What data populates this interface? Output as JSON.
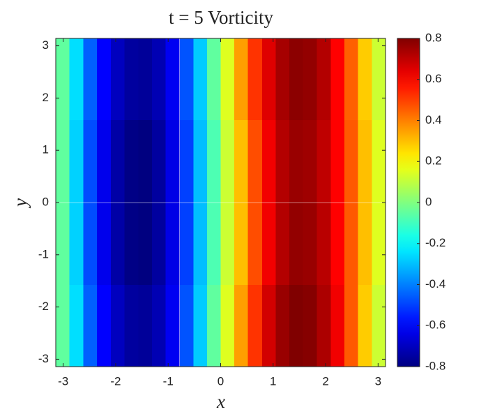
{
  "chart_data": {
    "type": "heatmap",
    "title": "t = 5 Vorticity",
    "x_label": "x",
    "y_label": "y",
    "colormap": "jet",
    "clim": [
      -0.8,
      0.8
    ],
    "cticks": [
      -0.8,
      -0.6,
      -0.4,
      -0.2,
      0,
      0.2,
      0.4,
      0.6,
      0.8
    ],
    "xlim": [
      -3.1416,
      3.1416
    ],
    "ylim": [
      -3.1416,
      3.1416
    ],
    "xticks": [
      -3,
      -2,
      -1,
      0,
      1,
      2,
      3
    ],
    "yticks": [
      -3,
      -2,
      -1,
      0,
      1,
      2,
      3
    ],
    "x": [
      -3.01,
      -2.75,
      -2.49,
      -2.23,
      -1.96,
      -1.7,
      -1.44,
      -1.18,
      -0.92,
      -0.65,
      -0.39,
      -0.13,
      0.13,
      0.39,
      0.65,
      0.92,
      1.18,
      1.44,
      1.7,
      1.96,
      2.23,
      2.49,
      2.75,
      3.01
    ],
    "y": [
      2.36,
      0.79,
      -0.79,
      -2.36
    ],
    "values": [
      [
        -0.05,
        -0.25,
        -0.45,
        -0.6,
        -0.7,
        -0.75,
        -0.76,
        -0.72,
        -0.62,
        -0.47,
        -0.28,
        -0.05,
        0.15,
        0.35,
        0.52,
        0.65,
        0.74,
        0.78,
        0.77,
        0.72,
        0.6,
        0.45,
        0.28,
        0.12
      ],
      [
        -0.05,
        -0.27,
        -0.48,
        -0.63,
        -0.74,
        -0.79,
        -0.8,
        -0.75,
        -0.64,
        -0.5,
        -0.3,
        -0.08,
        0.12,
        0.3,
        0.48,
        0.62,
        0.72,
        0.76,
        0.75,
        0.7,
        0.6,
        0.46,
        0.3,
        0.15
      ],
      [
        -0.05,
        -0.27,
        -0.48,
        -0.63,
        -0.74,
        -0.79,
        -0.8,
        -0.75,
        -0.64,
        -0.5,
        -0.3,
        -0.08,
        0.12,
        0.3,
        0.48,
        0.62,
        0.72,
        0.77,
        0.76,
        0.71,
        0.6,
        0.46,
        0.3,
        0.15
      ],
      [
        -0.05,
        -0.25,
        -0.45,
        -0.6,
        -0.7,
        -0.75,
        -0.76,
        -0.72,
        -0.62,
        -0.47,
        -0.28,
        -0.05,
        0.15,
        0.35,
        0.52,
        0.67,
        0.76,
        0.8,
        0.79,
        0.73,
        0.62,
        0.46,
        0.28,
        0.12
      ]
    ]
  }
}
